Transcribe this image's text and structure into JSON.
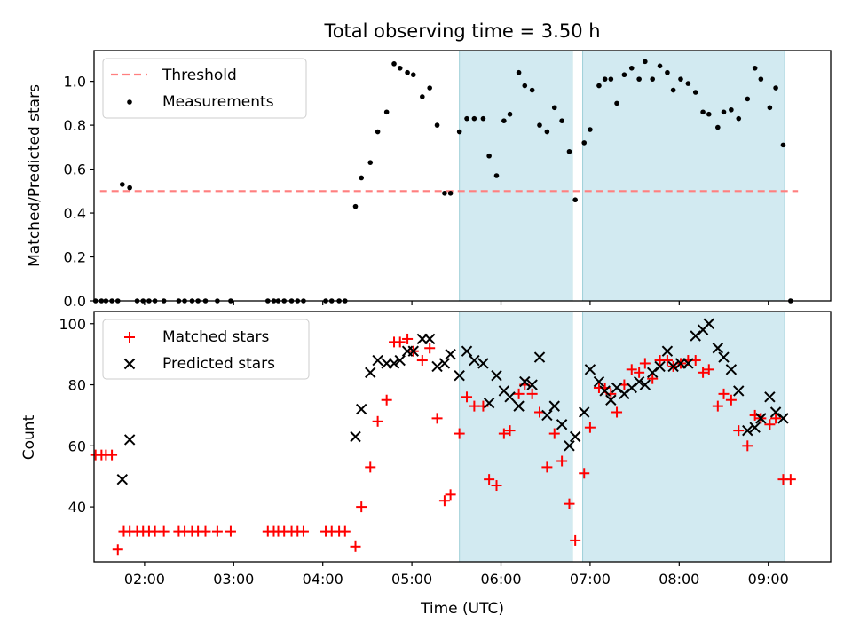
{
  "title": "Total observing time = 3.50 h",
  "xlabel": "Time (UTC)",
  "x_ticks": [
    "02:00",
    "03:00",
    "04:00",
    "05:00",
    "06:00",
    "07:00",
    "08:00",
    "09:00"
  ],
  "colors": {
    "threshold": "#ff7f7f",
    "matched": "#ff0000",
    "predicted": "#000000",
    "shade": "#add8e6"
  },
  "chart_data": [
    {
      "type": "scatter",
      "ylabel": "Matched/Predicted stars",
      "xlim": [
        "01:26",
        "09:42"
      ],
      "ylim": [
        0,
        1.14
      ],
      "y_ticks": [
        "0.0",
        "0.2",
        "0.4",
        "0.6",
        "0.8",
        "1.0"
      ],
      "legend": {
        "position": "upper-left",
        "entries": [
          "Threshold",
          "Measurements"
        ]
      },
      "shaded_intervals": [
        [
          "05:32",
          "06:48"
        ],
        [
          "06:55",
          "09:11"
        ]
      ],
      "threshold": {
        "name": "Threshold",
        "y": 0.5,
        "x_start": "01:30",
        "x_end": "09:20",
        "style": "dashed"
      },
      "series": [
        {
          "name": "Measurements",
          "points": [
            [
              "01:27",
              0
            ],
            [
              "01:31",
              0
            ],
            [
              "01:34",
              0
            ],
            [
              "01:38",
              0
            ],
            [
              "01:42",
              0
            ],
            [
              "01:45",
              0.53
            ],
            [
              "01:50",
              0.515
            ],
            [
              "01:55",
              0
            ],
            [
              "01:59",
              0
            ],
            [
              "02:03",
              0
            ],
            [
              "02:07",
              0
            ],
            [
              "02:13",
              0
            ],
            [
              "02:23",
              0
            ],
            [
              "02:27",
              0
            ],
            [
              "02:32",
              0
            ],
            [
              "02:36",
              0
            ],
            [
              "02:41",
              0
            ],
            [
              "02:49",
              0
            ],
            [
              "02:58",
              0
            ],
            [
              "03:23",
              0
            ],
            [
              "03:27",
              0
            ],
            [
              "03:30",
              0
            ],
            [
              "03:34",
              0
            ],
            [
              "03:39",
              0
            ],
            [
              "03:43",
              0
            ],
            [
              "03:47",
              0
            ],
            [
              "04:02",
              0
            ],
            [
              "04:06",
              0
            ],
            [
              "04:11",
              0
            ],
            [
              "04:15",
              0
            ],
            [
              "04:22",
              0.43
            ],
            [
              "04:26",
              0.56
            ],
            [
              "04:32",
              0.63
            ],
            [
              "04:37",
              0.77
            ],
            [
              "04:43",
              0.86
            ],
            [
              "04:48",
              1.08
            ],
            [
              "04:52",
              1.06
            ],
            [
              "04:57",
              1.04
            ],
            [
              "05:01",
              1.03
            ],
            [
              "05:07",
              0.93
            ],
            [
              "05:12",
              0.97
            ],
            [
              "05:17",
              0.8
            ],
            [
              "05:22",
              0.49
            ],
            [
              "05:26",
              0.49
            ],
            [
              "05:32",
              0.77
            ],
            [
              "05:37",
              0.83
            ],
            [
              "05:42",
              0.83
            ],
            [
              "05:48",
              0.83
            ],
            [
              "05:52",
              0.66
            ],
            [
              "05:57",
              0.57
            ],
            [
              "06:02",
              0.82
            ],
            [
              "06:06",
              0.85
            ],
            [
              "06:12",
              1.04
            ],
            [
              "06:16",
              0.98
            ],
            [
              "06:21",
              0.96
            ],
            [
              "06:26",
              0.8
            ],
            [
              "06:31",
              0.77
            ],
            [
              "06:36",
              0.88
            ],
            [
              "06:41",
              0.82
            ],
            [
              "06:46",
              0.68
            ],
            [
              "06:50",
              0.46
            ],
            [
              "06:56",
              0.72
            ],
            [
              "07:00",
              0.78
            ],
            [
              "07:06",
              0.98
            ],
            [
              "07:10",
              1.01
            ],
            [
              "07:14",
              1.01
            ],
            [
              "07:18",
              0.9
            ],
            [
              "07:23",
              1.03
            ],
            [
              "07:28",
              1.06
            ],
            [
              "07:33",
              1.01
            ],
            [
              "07:37",
              1.09
            ],
            [
              "07:42",
              1.01
            ],
            [
              "07:47",
              1.07
            ],
            [
              "07:52",
              1.04
            ],
            [
              "07:56",
              0.96
            ],
            [
              "08:01",
              1.01
            ],
            [
              "08:06",
              0.99
            ],
            [
              "08:11",
              0.95
            ],
            [
              "08:16",
              0.86
            ],
            [
              "08:20",
              0.85
            ],
            [
              "08:26",
              0.79
            ],
            [
              "08:30",
              0.86
            ],
            [
              "08:35",
              0.87
            ],
            [
              "08:40",
              0.83
            ],
            [
              "08:46",
              0.92
            ],
            [
              "08:51",
              1.06
            ],
            [
              "08:55",
              1.01
            ],
            [
              "09:01",
              0.88
            ],
            [
              "09:05",
              0.97
            ],
            [
              "09:10",
              0.71
            ],
            [
              "09:15",
              0
            ]
          ]
        }
      ]
    },
    {
      "type": "scatter",
      "ylabel": "Count",
      "xlim": [
        "01:26",
        "09:42"
      ],
      "ylim": [
        22,
        104
      ],
      "y_ticks": [
        "40",
        "60",
        "80",
        "100"
      ],
      "legend": {
        "position": "upper-left",
        "entries": [
          "Matched stars",
          "Predicted stars"
        ]
      },
      "shaded_intervals": [
        [
          "05:32",
          "06:48"
        ],
        [
          "06:55",
          "09:11"
        ]
      ],
      "series": [
        {
          "name": "Matched stars",
          "marker": "+",
          "points": [
            [
              "01:27",
              57
            ],
            [
              "01:31",
              57
            ],
            [
              "01:34",
              57
            ],
            [
              "01:38",
              57
            ],
            [
              "01:42",
              26
            ],
            [
              "01:46",
              32
            ],
            [
              "01:50",
              32
            ],
            [
              "01:55",
              32
            ],
            [
              "01:59",
              32
            ],
            [
              "02:03",
              32
            ],
            [
              "02:07",
              32
            ],
            [
              "02:13",
              32
            ],
            [
              "02:23",
              32
            ],
            [
              "02:27",
              32
            ],
            [
              "02:32",
              32
            ],
            [
              "02:36",
              32
            ],
            [
              "02:41",
              32
            ],
            [
              "02:49",
              32
            ],
            [
              "02:58",
              32
            ],
            [
              "03:23",
              32
            ],
            [
              "03:27",
              32
            ],
            [
              "03:30",
              32
            ],
            [
              "03:34",
              32
            ],
            [
              "03:39",
              32
            ],
            [
              "03:43",
              32
            ],
            [
              "03:47",
              32
            ],
            [
              "04:02",
              32
            ],
            [
              "04:06",
              32
            ],
            [
              "04:11",
              32
            ],
            [
              "04:15",
              32
            ],
            [
              "04:22",
              27
            ],
            [
              "04:26",
              40
            ],
            [
              "04:32",
              53
            ],
            [
              "04:37",
              68
            ],
            [
              "04:43",
              75
            ],
            [
              "04:48",
              94
            ],
            [
              "04:52",
              94
            ],
            [
              "04:57",
              95
            ],
            [
              "05:01",
              91
            ],
            [
              "05:07",
              88
            ],
            [
              "05:12",
              92
            ],
            [
              "05:17",
              69
            ],
            [
              "05:22",
              42
            ],
            [
              "05:26",
              44
            ],
            [
              "05:32",
              64
            ],
            [
              "05:37",
              76
            ],
            [
              "05:42",
              73
            ],
            [
              "05:48",
              73
            ],
            [
              "05:52",
              49
            ],
            [
              "05:57",
              47
            ],
            [
              "06:02",
              64
            ],
            [
              "06:06",
              65
            ],
            [
              "06:12",
              77
            ],
            [
              "06:16",
              80
            ],
            [
              "06:21",
              77
            ],
            [
              "06:26",
              71
            ],
            [
              "06:31",
              53
            ],
            [
              "06:36",
              64
            ],
            [
              "06:41",
              55
            ],
            [
              "06:46",
              41
            ],
            [
              "06:50",
              29
            ],
            [
              "06:56",
              51
            ],
            [
              "07:00",
              66
            ],
            [
              "07:06",
              79
            ],
            [
              "07:10",
              79
            ],
            [
              "07:14",
              77
            ],
            [
              "07:18",
              71
            ],
            [
              "07:23",
              80
            ],
            [
              "07:28",
              85
            ],
            [
              "07:33",
              84
            ],
            [
              "07:37",
              87
            ],
            [
              "07:42",
              82
            ],
            [
              "07:47",
              88
            ],
            [
              "07:52",
              88
            ],
            [
              "07:56",
              86
            ],
            [
              "08:01",
              87
            ],
            [
              "08:06",
              88
            ],
            [
              "08:11",
              88
            ],
            [
              "08:16",
              84
            ],
            [
              "08:20",
              85
            ],
            [
              "08:26",
              73
            ],
            [
              "08:30",
              77
            ],
            [
              "08:35",
              75
            ],
            [
              "08:40",
              65
            ],
            [
              "08:46",
              60
            ],
            [
              "08:51",
              70
            ],
            [
              "08:55",
              69
            ],
            [
              "09:01",
              67
            ],
            [
              "09:05",
              69
            ],
            [
              "09:10",
              49
            ],
            [
              "09:15",
              49
            ]
          ]
        },
        {
          "name": "Predicted stars",
          "marker": "x",
          "points": [
            [
              "01:45",
              49
            ],
            [
              "01:50",
              62
            ],
            [
              "04:22",
              63
            ],
            [
              "04:26",
              72
            ],
            [
              "04:32",
              84
            ],
            [
              "04:37",
              88
            ],
            [
              "04:43",
              87
            ],
            [
              "04:48",
              87
            ],
            [
              "04:52",
              88
            ],
            [
              "04:57",
              91
            ],
            [
              "05:01",
              91
            ],
            [
              "05:07",
              95
            ],
            [
              "05:12",
              95
            ],
            [
              "05:17",
              86
            ],
            [
              "05:22",
              87
            ],
            [
              "05:26",
              90
            ],
            [
              "05:32",
              83
            ],
            [
              "05:37",
              91
            ],
            [
              "05:42",
              88
            ],
            [
              "05:48",
              87
            ],
            [
              "05:52",
              74
            ],
            [
              "05:57",
              83
            ],
            [
              "06:02",
              78
            ],
            [
              "06:06",
              76
            ],
            [
              "06:12",
              73
            ],
            [
              "06:16",
              81
            ],
            [
              "06:21",
              80
            ],
            [
              "06:26",
              89
            ],
            [
              "06:31",
              70
            ],
            [
              "06:36",
              73
            ],
            [
              "06:41",
              67
            ],
            [
              "06:46",
              60
            ],
            [
              "06:50",
              63
            ],
            [
              "06:56",
              71
            ],
            [
              "07:00",
              85
            ],
            [
              "07:06",
              81
            ],
            [
              "07:10",
              78
            ],
            [
              "07:14",
              75
            ],
            [
              "07:18",
              79
            ],
            [
              "07:23",
              77
            ],
            [
              "07:28",
              79
            ],
            [
              "07:33",
              81
            ],
            [
              "07:37",
              80
            ],
            [
              "07:42",
              84
            ],
            [
              "07:47",
              86
            ],
            [
              "07:52",
              91
            ],
            [
              "07:56",
              86
            ],
            [
              "08:01",
              87
            ],
            [
              "08:06",
              87
            ],
            [
              "08:11",
              96
            ],
            [
              "08:16",
              98
            ],
            [
              "08:20",
              100
            ],
            [
              "08:26",
              92
            ],
            [
              "08:30",
              89
            ],
            [
              "08:35",
              85
            ],
            [
              "08:40",
              78
            ],
            [
              "08:46",
              65
            ],
            [
              "08:51",
              66
            ],
            [
              "08:55",
              69
            ],
            [
              "09:01",
              76
            ],
            [
              "09:05",
              71
            ],
            [
              "09:10",
              69
            ]
          ]
        }
      ]
    }
  ]
}
